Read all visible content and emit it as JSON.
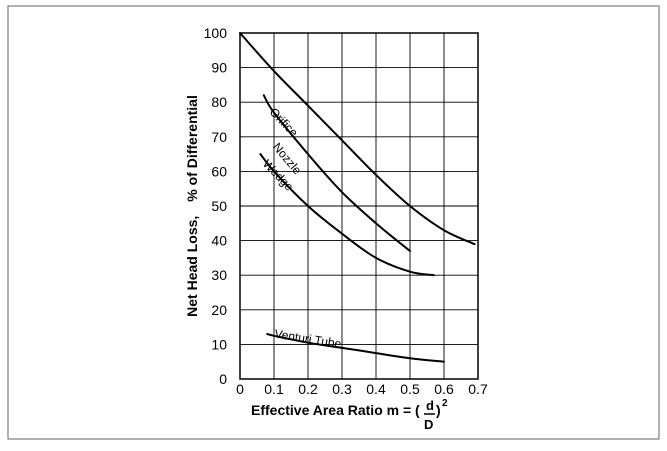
{
  "chart_data": {
    "type": "line",
    "ylabel_main": "Net Head Loss,",
    "ylabel_sub": "% of Differential",
    "xlabel_main": "Effective Area Ratio m = (",
    "xlabel_num": "d",
    "xlabel_den": "D",
    "xlabel_close": ")",
    "xlabel_exp": "2",
    "xlim": [
      0,
      0.7
    ],
    "ylim": [
      0,
      100
    ],
    "x_ticks": [
      "0",
      "0.1",
      "0.2",
      "0.3",
      "0.4",
      "0.5",
      "0.6",
      "0.7"
    ],
    "y_ticks": [
      "0",
      "10",
      "20",
      "30",
      "40",
      "50",
      "60",
      "70",
      "80",
      "90",
      "100"
    ],
    "grid": true,
    "series": [
      {
        "name": "Orifice",
        "x": [
          0,
          0.1,
          0.2,
          0.3,
          0.4,
          0.5,
          0.6,
          0.69
        ],
        "y": [
          100,
          89,
          79,
          69,
          59,
          50,
          43,
          39
        ]
      },
      {
        "name": "Nozzle",
        "x": [
          0.07,
          0.1,
          0.2,
          0.3,
          0.4,
          0.5
        ],
        "y": [
          82,
          77,
          65,
          54,
          45,
          37
        ]
      },
      {
        "name": "Wedge",
        "x": [
          0.06,
          0.1,
          0.2,
          0.3,
          0.4,
          0.5,
          0.57
        ],
        "y": [
          65,
          60,
          50,
          42,
          35,
          31,
          30
        ]
      },
      {
        "name": "Venturi Tube",
        "x": [
          0.08,
          0.1,
          0.2,
          0.3,
          0.4,
          0.5,
          0.6
        ],
        "y": [
          13,
          12.5,
          10.5,
          9,
          7.5,
          6,
          5
        ]
      }
    ]
  }
}
